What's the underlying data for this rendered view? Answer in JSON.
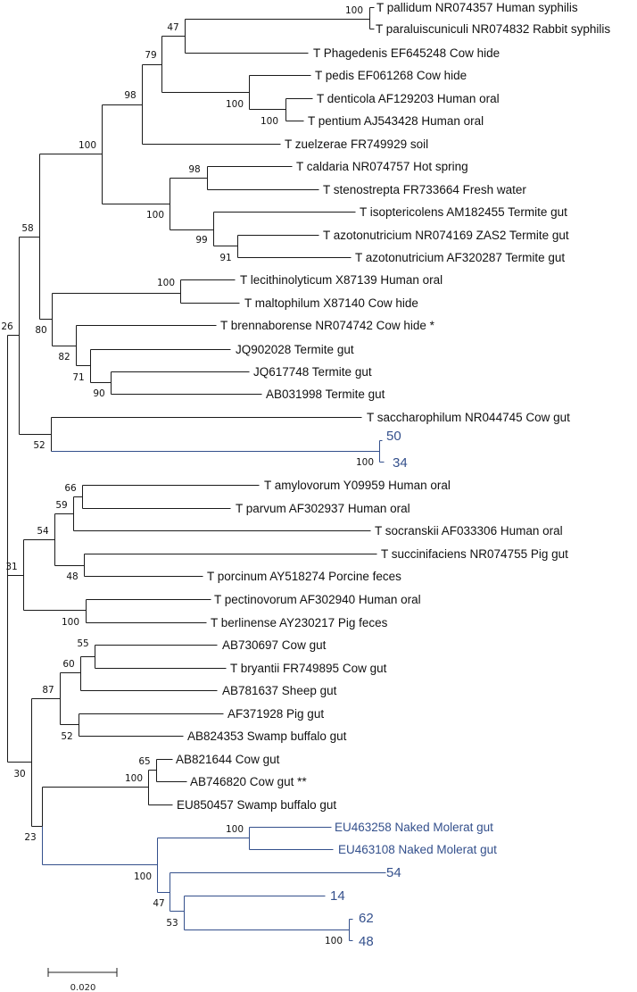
{
  "colors": {
    "branch": "#1a1a1a",
    "highlight": "#34508c"
  },
  "tree": {
    "leaves": [
      {
        "label": "T pallidum NR074357 Human syphilis",
        "highlight": false
      },
      {
        "label": "T paraluiscuniculi NR074832 Rabbit syphilis",
        "highlight": false
      },
      {
        "label": "T Phagedenis EF645248 Cow hide",
        "highlight": false
      },
      {
        "label": "T pedis EF061268 Cow hide",
        "highlight": false
      },
      {
        "label": "T denticola AF129203 Human oral",
        "highlight": false
      },
      {
        "label": "T pentium AJ543428 Human oral",
        "highlight": false
      },
      {
        "label": "T zuelzerae FR749929 soil",
        "highlight": false
      },
      {
        "label": "T caldaria NR074757 Hot spring",
        "highlight": false
      },
      {
        "label": "T stenostrepta FR733664 Fresh water",
        "highlight": false
      },
      {
        "label": "T isoptericolens AM182455 Termite gut",
        "highlight": false
      },
      {
        "label": "T azotonutricium NR074169 ZAS2 Termite gut",
        "highlight": false
      },
      {
        "label": "T azotonutricium AF320287 Termite gut",
        "highlight": false
      },
      {
        "label": "T lecithinolyticum X87139 Human oral",
        "highlight": false
      },
      {
        "label": "T maltophilum X87140 Cow hide",
        "highlight": false
      },
      {
        "label": "T brennaborense NR074742 Cow hide *",
        "highlight": false
      },
      {
        "label": "JQ902028 Termite gut",
        "highlight": false
      },
      {
        "label": "JQ617748 Termite gut",
        "highlight": false
      },
      {
        "label": "AB031998 Termite gut",
        "highlight": false
      },
      {
        "label": "T saccharophilum NR044745 Cow gut",
        "highlight": false
      },
      {
        "label": "50",
        "highlight": true
      },
      {
        "label": "34",
        "highlight": true
      },
      {
        "label": "T amylovorum Y09959 Human oral",
        "highlight": false
      },
      {
        "label": "T parvum AF302937 Human oral",
        "highlight": false
      },
      {
        "label": "T socranskii AF033306 Human oral",
        "highlight": false
      },
      {
        "label": "T succinifaciens NR074755 Pig gut",
        "highlight": false
      },
      {
        "label": "T porcinum AY518274 Porcine feces",
        "highlight": false
      },
      {
        "label": "T pectinovorum AF302940 Human oral",
        "highlight": false
      },
      {
        "label": "T berlinense AY230217 Pig feces",
        "highlight": false
      },
      {
        "label": "AB730697 Cow gut",
        "highlight": false
      },
      {
        "label": "T bryantii FR749895 Cow gut",
        "highlight": false
      },
      {
        "label": "AB781637 Sheep gut",
        "highlight": false
      },
      {
        "label": "AF371928 Pig gut",
        "highlight": false
      },
      {
        "label": "AB824353 Swamp buffalo gut",
        "highlight": false
      },
      {
        "label": "AB821644 Cow gut",
        "highlight": false
      },
      {
        "label": "AB746820 Cow gut **",
        "highlight": false
      },
      {
        "label": "EU850457 Swamp buffalo gut",
        "highlight": false
      },
      {
        "label": "EU463258 Naked Molerat gut",
        "highlight": true
      },
      {
        "label": "EU463108 Naked Molerat gut",
        "highlight": true
      },
      {
        "label": "54",
        "highlight": true
      },
      {
        "label": "14",
        "highlight": true
      },
      {
        "label": "62",
        "highlight": true
      },
      {
        "label": "48",
        "highlight": true
      }
    ],
    "bootstrap": [
      "100",
      "47",
      "79",
      "98",
      "100",
      "100",
      "100",
      "58",
      "98",
      "100",
      "99",
      "91",
      "100",
      "26",
      "80",
      "82",
      "71",
      "90",
      "52",
      "100",
      "66",
      "59",
      "54",
      "31",
      "48",
      "100",
      "55",
      "60",
      "87",
      "52",
      "65",
      "100",
      "30",
      "100",
      "23",
      "100",
      "47",
      "53",
      "100"
    ]
  },
  "scale_bar": {
    "label": "0.020"
  }
}
